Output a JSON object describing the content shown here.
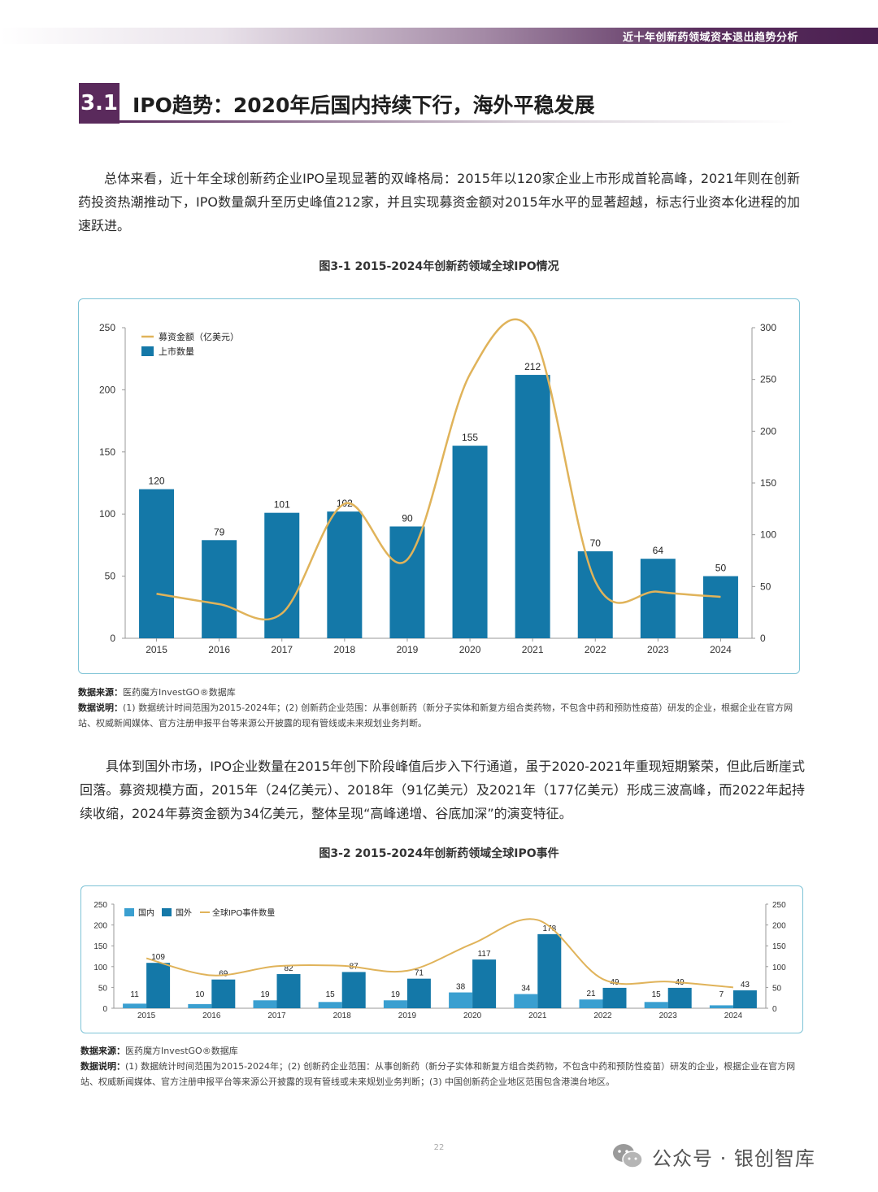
{
  "header": {
    "title": "近十年创新药领域资本退出趋势分析"
  },
  "section": {
    "number": "3.1",
    "title": "IPO趋势：2020年后国内持续下行，海外平稳发展"
  },
  "paragraphs": {
    "p1": "总体来看，近十年全球创新药企业IPO呈现显著的双峰格局：2015年以120家企业上市形成首轮高峰，2021年则在创新药投资热潮推动下，IPO数量飙升至历史峰值212家，并且实现募资金额对2015年水平的显著超越，标志行业资本化进程的加速跃进。",
    "p2": "具体到国外市场，IPO企业数量在2015年创下阶段峰值后步入下行通道，虽于2020-2021年重现短期繁荣，但此后断崖式回落。募资规模方面，2015年（24亿美元）、2018年（91亿美元）及2021年（177亿美元）形成三波高峰，而2022年起持续收缩，2024年募资金额为34亿美元，整体呈现“高峰递增、谷底加深”的演变特征。"
  },
  "figures": {
    "fig1_title": "图3-1 2015-2024年创新药领域全球IPO情况",
    "fig2_title": "图3-2 2015-2024年创新药领域全球IPO事件"
  },
  "notes": {
    "source_label": "数据来源：",
    "source_text": "医药魔方InvestGO®数据库",
    "desc_label": "数据说明：",
    "desc1": "(1) 数据统计时间范围为2015-2024年；(2) 创新药企业范围：从事创新药（新分子实体和新复方组合类药物，不包含中药和预防性疫苗）研发的企业，根据企业在官方网站、权威新闻媒体、官方注册申报平台等来源公开披露的现有管线或未来规划业务判断。",
    "desc2": "(1) 数据统计时间范围为2015-2024年；(2) 创新药企业范围：从事创新药（新分子实体和新复方组合类药物，不包含中药和预防性疫苗）研发的企业，根据企业在官方网站、权威新闻媒体、官方注册申报平台等来源公开披露的现有管线或未来规划业务判断；(3) 中国创新药企业地区范围包含港澳台地区。"
  },
  "page_number": "22",
  "watermark": {
    "text": "公众号 · 银创智库",
    "icon": "wechat-icon"
  },
  "colors": {
    "bar_dark": "#1478a8",
    "bar_light": "#3a9fd0",
    "line": "#e0b35a",
    "brand": "#5a2a5c"
  },
  "chart_data": [
    {
      "type": "bar",
      "categories": [
        "2015",
        "2016",
        "2017",
        "2018",
        "2019",
        "2020",
        "2021",
        "2022",
        "2023",
        "2024"
      ],
      "series": [
        {
          "name": "上市数量",
          "type": "bar",
          "axis": "left",
          "values": [
            120,
            79,
            101,
            102,
            90,
            155,
            212,
            70,
            64,
            50
          ]
        },
        {
          "name": "募资金额（亿美元）",
          "type": "line",
          "axis": "right",
          "values": [
            43,
            33,
            24,
            130,
            76,
            255,
            295,
            55,
            45,
            40
          ]
        }
      ],
      "ylim_left": [
        0,
        250
      ],
      "yticks_left": [
        0,
        50,
        100,
        150,
        200,
        250
      ],
      "ylim_right": [
        0,
        300
      ],
      "yticks_right": [
        0,
        50,
        100,
        150,
        200,
        250,
        300
      ],
      "legend": "top-left",
      "grid": false
    },
    {
      "type": "bar",
      "categories": [
        "2015",
        "2016",
        "2017",
        "2018",
        "2019",
        "2020",
        "2021",
        "2022",
        "2023",
        "2024"
      ],
      "series": [
        {
          "name": "国内",
          "type": "bar",
          "values": [
            11,
            10,
            19,
            15,
            19,
            38,
            34,
            21,
            15,
            7
          ]
        },
        {
          "name": "国外",
          "type": "bar",
          "values": [
            109,
            69,
            82,
            87,
            71,
            117,
            178,
            49,
            49,
            43
          ]
        },
        {
          "name": "全球IPO事件数量",
          "type": "line",
          "values": [
            120,
            79,
            101,
            102,
            90,
            155,
            212,
            70,
            64,
            50
          ]
        }
      ],
      "ylim": [
        0,
        250
      ],
      "yticks": [
        0,
        50,
        100,
        150,
        200,
        250
      ],
      "legend": "top-left",
      "grid": false
    }
  ]
}
